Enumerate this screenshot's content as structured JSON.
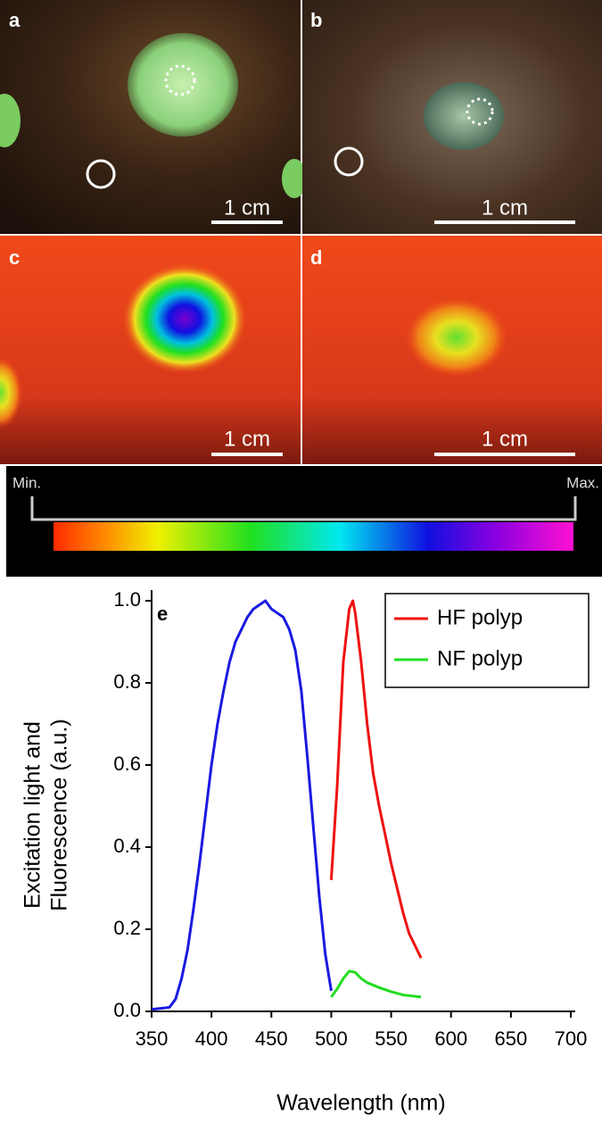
{
  "panels": [
    {
      "label": "a",
      "scale_bar": "1 cm"
    },
    {
      "label": "b",
      "scale_bar": "1 cm"
    },
    {
      "label": "c",
      "scale_bar": "1 cm"
    },
    {
      "label": "d",
      "scale_bar": "1 cm"
    }
  ],
  "colorbar": {
    "min_label": "Min.",
    "max_label": "Max."
  },
  "chart_data": {
    "type": "line",
    "panel_label": "e",
    "xlabel": "Wavelength (nm)",
    "ylabel": [
      "Excitation light and",
      "Fluorescence (a.u.)"
    ],
    "xlim": [
      350,
      700
    ],
    "xticks": [
      350,
      400,
      450,
      500,
      550,
      600,
      650,
      700
    ],
    "ylim": [
      0,
      1
    ],
    "yticks": [
      {
        "value": 0,
        "label": "0.0"
      },
      0.2,
      0.4,
      0.6,
      0.8,
      {
        "value": 1,
        "label": "1.0"
      }
    ],
    "legend": "upper right",
    "series": [
      {
        "name": null,
        "color": "#1a1ae0",
        "x": [
          350,
          360,
          365,
          370,
          375,
          380,
          385,
          390,
          395,
          400,
          405,
          410,
          415,
          420,
          425,
          430,
          435,
          440,
          445,
          450,
          455,
          460,
          465,
          470,
          475,
          480,
          485,
          490,
          495,
          500
        ],
        "values": [
          0.005,
          0.008,
          0.01,
          0.03,
          0.08,
          0.15,
          0.25,
          0.36,
          0.48,
          0.6,
          0.7,
          0.78,
          0.85,
          0.9,
          0.93,
          0.96,
          0.98,
          0.99,
          1.0,
          0.98,
          0.97,
          0.96,
          0.93,
          0.88,
          0.78,
          0.62,
          0.45,
          0.28,
          0.14,
          0.05
        ]
      },
      {
        "name": "HF polyp",
        "color": "#ee1111",
        "x": [
          500,
          505,
          510,
          515,
          518,
          520,
          525,
          530,
          535,
          540,
          545,
          550,
          555,
          560,
          565,
          570,
          575
        ],
        "values": [
          0.32,
          0.55,
          0.85,
          0.98,
          1.0,
          0.97,
          0.85,
          0.7,
          0.58,
          0.5,
          0.43,
          0.36,
          0.3,
          0.24,
          0.19,
          0.16,
          0.13
        ]
      },
      {
        "name": "NF polyp",
        "color": "#22dd22",
        "x": [
          500,
          505,
          510,
          515,
          520,
          525,
          530,
          540,
          550,
          560,
          575
        ],
        "values": [
          0.035,
          0.055,
          0.08,
          0.098,
          0.095,
          0.08,
          0.07,
          0.058,
          0.048,
          0.04,
          0.035
        ]
      }
    ]
  }
}
